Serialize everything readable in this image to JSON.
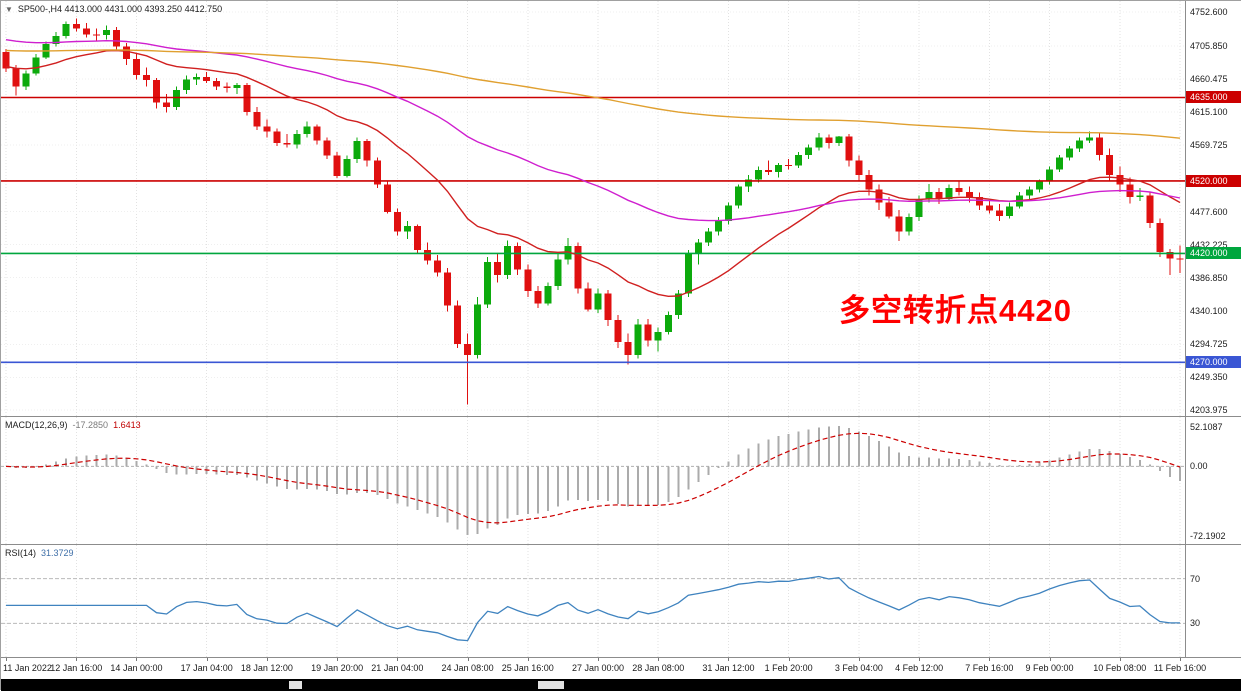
{
  "window": {
    "title": "SP500-,H4 4413.000 4431.000 4393.250 4412.750",
    "dropdown_icon": "▼"
  },
  "indicators_header": {
    "macd_label": "MACD(12,26,9)",
    "macd_value_main": "-17.2850",
    "macd_value_signal": "1.6413",
    "rsi_label": "RSI(14)",
    "rsi_value": "31.3729"
  },
  "annotation": {
    "text": "多空转折点4420",
    "color": "#ff0000"
  },
  "colors": {
    "bull": "#0caa0c",
    "bear": "#e01010",
    "ma_fast": "#d02020",
    "ma_mid": "#cf1fcf",
    "ma_slow": "#e0a030",
    "macd_hist": "#ababab",
    "macd_signal": "#cc0000",
    "rsi_line": "#3f83bf",
    "grid": "#e2e2e2",
    "level_red": "#cc0000",
    "level_green": "#00a63e",
    "level_blue": "#3a56d4"
  },
  "chart_data": {
    "type": "candlestick",
    "symbol": "SP500-",
    "timeframe": "H4",
    "current_bar": {
      "open": 4413.0,
      "high": 4431.0,
      "low": 4393.25,
      "close": 4412.75
    },
    "x_labels": [
      "11 Jan 2022",
      "12 Jan 16:00",
      "14 Jan 00:00",
      "17 Jan 04:00",
      "18 Jan 12:00",
      "19 Jan 20:00",
      "21 Jan 04:00",
      "24 Jan 08:00",
      "25 Jan 16:00",
      "27 Jan 00:00",
      "28 Jan 08:00",
      "31 Jan 12:00",
      "1 Feb 20:00",
      "3 Feb 04:00",
      "4 Feb 12:00",
      "7 Feb 16:00",
      "9 Feb 00:00",
      "10 Feb 08:00",
      "11 Feb 16:00"
    ],
    "y_axis_labels": [
      "4752.600",
      "4705.850",
      "4660.475",
      "4615.100",
      "4569.725",
      "4477.600",
      "4432.225",
      "4386.850",
      "4340.100",
      "4294.725",
      "4249.350",
      "4203.975"
    ],
    "y_range": [
      4196,
      4768
    ],
    "candles": [
      [
        4698,
        4702,
        4670,
        4675
      ],
      [
        4675,
        4680,
        4638,
        4650
      ],
      [
        4650,
        4672,
        4645,
        4668
      ],
      [
        4668,
        4695,
        4665,
        4690
      ],
      [
        4690,
        4712,
        4688,
        4709
      ],
      [
        4709,
        4725,
        4705,
        4720
      ],
      [
        4720,
        4740,
        4716,
        4736
      ],
      [
        4736,
        4744,
        4726,
        4730
      ],
      [
        4730,
        4738,
        4718,
        4722
      ],
      [
        4722,
        4730,
        4712,
        4721
      ],
      [
        4721,
        4734,
        4715,
        4728
      ],
      [
        4728,
        4732,
        4700,
        4705
      ],
      [
        4705,
        4710,
        4680,
        4688
      ],
      [
        4688,
        4695,
        4660,
        4666
      ],
      [
        4666,
        4676,
        4650,
        4659
      ],
      [
        4659,
        4662,
        4620,
        4628
      ],
      [
        4628,
        4640,
        4614,
        4622
      ],
      [
        4622,
        4650,
        4618,
        4645
      ],
      [
        4645,
        4665,
        4640,
        4660
      ],
      [
        4660,
        4668,
        4652,
        4663
      ],
      [
        4663,
        4670,
        4655,
        4658
      ],
      [
        4658,
        4662,
        4645,
        4650
      ],
      [
        4650,
        4656,
        4642,
        4648
      ],
      [
        4648,
        4655,
        4640,
        4652
      ],
      [
        4652,
        4655,
        4610,
        4615
      ],
      [
        4615,
        4622,
        4590,
        4595
      ],
      [
        4595,
        4605,
        4580,
        4588
      ],
      [
        4588,
        4592,
        4568,
        4572
      ],
      [
        4572,
        4585,
        4566,
        4570
      ],
      [
        4570,
        4590,
        4565,
        4585
      ],
      [
        4585,
        4602,
        4580,
        4595
      ],
      [
        4595,
        4598,
        4570,
        4576
      ],
      [
        4576,
        4580,
        4550,
        4555
      ],
      [
        4555,
        4560,
        4524,
        4527
      ],
      [
        4527,
        4555,
        4525,
        4550
      ],
      [
        4550,
        4580,
        4545,
        4575
      ],
      [
        4575,
        4578,
        4540,
        4548
      ],
      [
        4548,
        4552,
        4510,
        4515
      ],
      [
        4515,
        4520,
        4475,
        4477
      ],
      [
        4477,
        4482,
        4445,
        4450
      ],
      [
        4450,
        4465,
        4440,
        4458
      ],
      [
        4458,
        4460,
        4420,
        4425
      ],
      [
        4425,
        4435,
        4405,
        4410
      ],
      [
        4410,
        4418,
        4388,
        4394
      ],
      [
        4394,
        4400,
        4340,
        4348
      ],
      [
        4348,
        4355,
        4290,
        4295
      ],
      [
        4295,
        4310,
        4212,
        4280
      ],
      [
        4280,
        4360,
        4275,
        4350
      ],
      [
        4350,
        4415,
        4345,
        4408
      ],
      [
        4408,
        4420,
        4380,
        4390
      ],
      [
        4390,
        4438,
        4385,
        4430
      ],
      [
        4430,
        4435,
        4390,
        4398
      ],
      [
        4398,
        4405,
        4360,
        4368
      ],
      [
        4368,
        4375,
        4345,
        4351
      ],
      [
        4351,
        4380,
        4348,
        4375
      ],
      [
        4375,
        4420,
        4370,
        4412
      ],
      [
        4412,
        4441,
        4405,
        4430
      ],
      [
        4430,
        4435,
        4365,
        4372
      ],
      [
        4372,
        4380,
        4340,
        4343
      ],
      [
        4343,
        4372,
        4338,
        4365
      ],
      [
        4365,
        4370,
        4320,
        4328
      ],
      [
        4328,
        4335,
        4290,
        4298
      ],
      [
        4298,
        4310,
        4267,
        4280
      ],
      [
        4280,
        4330,
        4275,
        4322
      ],
      [
        4322,
        4330,
        4292,
        4300
      ],
      [
        4300,
        4318,
        4285,
        4312
      ],
      [
        4312,
        4340,
        4308,
        4335
      ],
      [
        4335,
        4370,
        4330,
        4365
      ],
      [
        4365,
        4425,
        4360,
        4421
      ],
      [
        4421,
        4440,
        4405,
        4435
      ],
      [
        4435,
        4455,
        4430,
        4450
      ],
      [
        4450,
        4470,
        4445,
        4465
      ],
      [
        4465,
        4490,
        4460,
        4486
      ],
      [
        4486,
        4515,
        4482,
        4512
      ],
      [
        4512,
        4528,
        4505,
        4522
      ],
      [
        4522,
        4540,
        4518,
        4535
      ],
      [
        4535,
        4548,
        4528,
        4532
      ],
      [
        4532,
        4545,
        4525,
        4542
      ],
      [
        4542,
        4550,
        4536,
        4541
      ],
      [
        4541,
        4560,
        4538,
        4556
      ],
      [
        4556,
        4570,
        4550,
        4566
      ],
      [
        4566,
        4586,
        4562,
        4580
      ],
      [
        4580,
        4584,
        4565,
        4572
      ],
      [
        4572,
        4582,
        4568,
        4581
      ],
      [
        4581,
        4585,
        4540,
        4548
      ],
      [
        4548,
        4555,
        4520,
        4528
      ],
      [
        4528,
        4535,
        4500,
        4508
      ],
      [
        4508,
        4515,
        4480,
        4490
      ],
      [
        4490,
        4498,
        4468,
        4471
      ],
      [
        4471,
        4480,
        4437,
        4450
      ],
      [
        4450,
        4475,
        4445,
        4470
      ],
      [
        4470,
        4500,
        4465,
        4495
      ],
      [
        4495,
        4516,
        4490,
        4505
      ],
      [
        4505,
        4510,
        4488,
        4495
      ],
      [
        4495,
        4515,
        4492,
        4510
      ],
      [
        4510,
        4520,
        4500,
        4505
      ],
      [
        4505,
        4512,
        4490,
        4498
      ],
      [
        4498,
        4504,
        4480,
        4486
      ],
      [
        4486,
        4492,
        4475,
        4479
      ],
      [
        4479,
        4488,
        4465,
        4472
      ],
      [
        4472,
        4490,
        4468,
        4485
      ],
      [
        4485,
        4505,
        4482,
        4500
      ],
      [
        4500,
        4512,
        4495,
        4508
      ],
      [
        4508,
        4522,
        4504,
        4519
      ],
      [
        4519,
        4540,
        4515,
        4536
      ],
      [
        4536,
        4556,
        4532,
        4552
      ],
      [
        4552,
        4568,
        4548,
        4565
      ],
      [
        4565,
        4580,
        4560,
        4576
      ],
      [
        4576,
        4588,
        4572,
        4580
      ],
      [
        4580,
        4586,
        4548,
        4556
      ],
      [
        4556,
        4565,
        4520,
        4528
      ],
      [
        4528,
        4540,
        4505,
        4515
      ],
      [
        4515,
        4525,
        4489,
        4498
      ],
      [
        4498,
        4510,
        4492,
        4500
      ],
      [
        4500,
        4505,
        4455,
        4462
      ],
      [
        4462,
        4468,
        4415,
        4422
      ],
      [
        4422,
        4426,
        4390,
        4413
      ],
      [
        4413,
        4431,
        4393.25,
        4412.75
      ]
    ],
    "horizontal_lines": [
      {
        "value": 4635,
        "label": "4635.000",
        "color_key": "level_red"
      },
      {
        "value": 4520,
        "label": "4520.000",
        "color_key": "level_red"
      },
      {
        "value": 4420,
        "label": "4420.000",
        "color_key": "level_green"
      },
      {
        "value": 4270,
        "label": "4270.000",
        "color_key": "level_blue"
      }
    ],
    "moving_averages": [
      {
        "name": "fast-red",
        "color_key": "ma_fast",
        "alpha": 0.09,
        "seed": 4678
      },
      {
        "name": "mid-magenta",
        "color_key": "ma_mid",
        "alpha": 0.032,
        "seed": 4716
      },
      {
        "name": "slow-orange",
        "color_key": "ma_slow",
        "alpha": 0.008,
        "seed": 4700
      }
    ],
    "macd": {
      "fast": 12,
      "slow": 26,
      "signal": 9,
      "current_main": -17.285,
      "current_signal": 1.6413,
      "axis_labels": [
        "52.1087",
        "0.00",
        "-72.1902"
      ]
    },
    "rsi": {
      "period": 14,
      "current": 31.3729,
      "levels": [
        70,
        30
      ],
      "range": [
        0,
        100
      ]
    }
  }
}
